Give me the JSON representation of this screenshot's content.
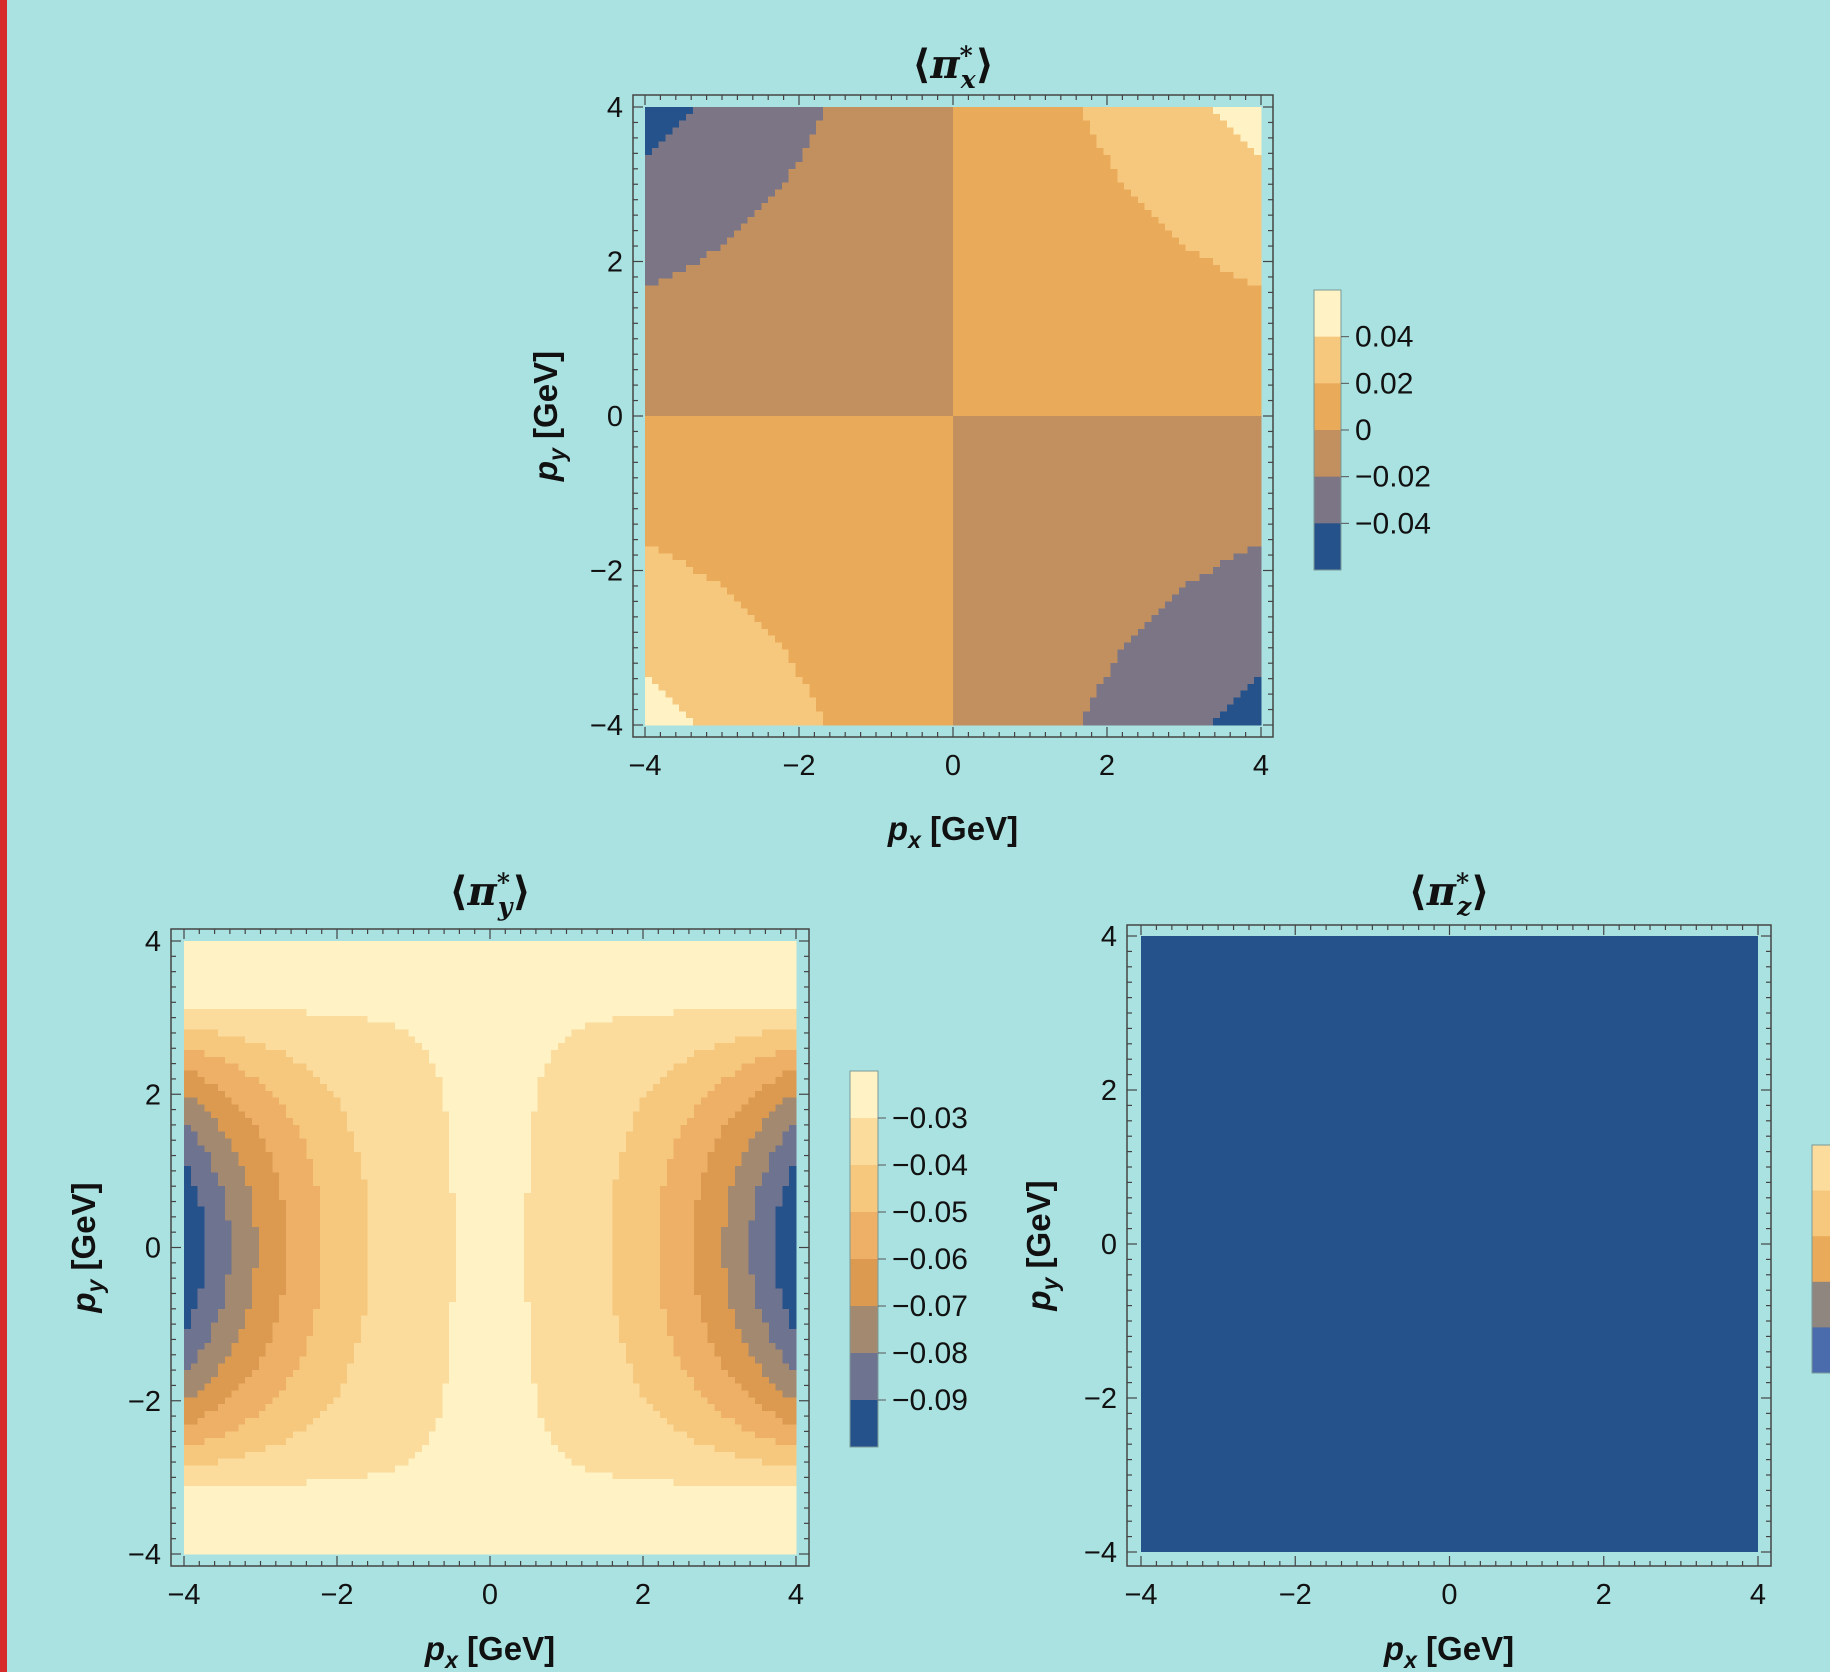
{
  "chart_data": [
    {
      "type": "contour",
      "title": "⟨π*x⟩",
      "title_parts": {
        "base": "π",
        "sup": "*",
        "sub": "x"
      },
      "xlabel": "p_x [GeV]",
      "ylabel": "p_y [GeV]",
      "xlabel_parts": {
        "base": "p",
        "sub": "x",
        "rest": " [GeV]"
      },
      "ylabel_parts": {
        "base": "p",
        "sub": "y",
        "rest": " [GeV]"
      },
      "xlim": [
        -4,
        4
      ],
      "ylim": [
        -4,
        4
      ],
      "xticks": [
        "−4",
        "−2",
        "0",
        "2",
        "4"
      ],
      "yticks": [
        "−4",
        "−2",
        "0",
        "2",
        "4"
      ],
      "function": "0.003 * p_x * p_y",
      "levels": [
        -0.04,
        -0.02,
        0,
        0.02,
        0.04
      ],
      "legend_labels": [
        "0.04",
        "0.02",
        "0",
        "−0.02",
        "−0.04"
      ],
      "legend_colors": [
        "#fff2c4",
        "#f6c87e",
        "#e9aa5a",
        "#c28f5f",
        "#7b7585",
        "#25528a"
      ]
    },
    {
      "type": "contour",
      "title": "⟨π*y⟩",
      "title_parts": {
        "base": "π",
        "sup": "*",
        "sub": "y"
      },
      "xlabel": "p_x [GeV]",
      "ylabel": "p_y [GeV]",
      "xlabel_parts": {
        "base": "p",
        "sub": "x",
        "rest": " [GeV]"
      },
      "ylabel_parts": {
        "base": "p",
        "sub": "y",
        "rest": " [GeV]"
      },
      "xlim": [
        -4,
        4
      ],
      "ylim": [
        -4,
        4
      ],
      "xticks": [
        "−4",
        "−2",
        "0",
        "2",
        "4"
      ],
      "yticks": [
        "−4",
        "−2",
        "0",
        "2",
        "4"
      ],
      "function": "-0.029 - 0.0044 * p_x^2 + 0.00045 * p_x^2 * p_y^2",
      "levels": [
        -0.09,
        -0.08,
        -0.07,
        -0.06,
        -0.05,
        -0.04,
        -0.03
      ],
      "legend_labels": [
        "−0.03",
        "−0.04",
        "−0.05",
        "−0.06",
        "−0.07",
        "−0.08",
        "−0.09"
      ],
      "legend_colors": [
        "#fff2c4",
        "#fbdc9c",
        "#f6c87e",
        "#edb066",
        "#dc9a50",
        "#a3896f",
        "#6e7390",
        "#25528a"
      ]
    },
    {
      "type": "contour",
      "title": "⟨π*z⟩",
      "title_parts": {
        "base": "π",
        "sup": "*",
        "sub": "z"
      },
      "xlabel": "p_x [GeV]",
      "ylabel": "p_y [GeV]",
      "xlabel_parts": {
        "base": "p",
        "sub": "x",
        "rest": " [GeV]"
      },
      "ylabel_parts": {
        "base": "p",
        "sub": "y",
        "rest": " [GeV]"
      },
      "xlim": [
        -4,
        4
      ],
      "ylim": [
        -4,
        4
      ],
      "xticks": [
        "−4",
        "−2",
        "0",
        "2",
        "4"
      ],
      "yticks": [
        "−4",
        "−2",
        "0",
        "2",
        "4"
      ],
      "function": "constant (single lowest band)",
      "fill_color": "#25528a",
      "legend_labels": [],
      "legend_colors": [
        "#fbdc9c",
        "#f6c87e",
        "#e9aa5a",
        "#8f8680",
        "#4a6cad"
      ]
    }
  ]
}
